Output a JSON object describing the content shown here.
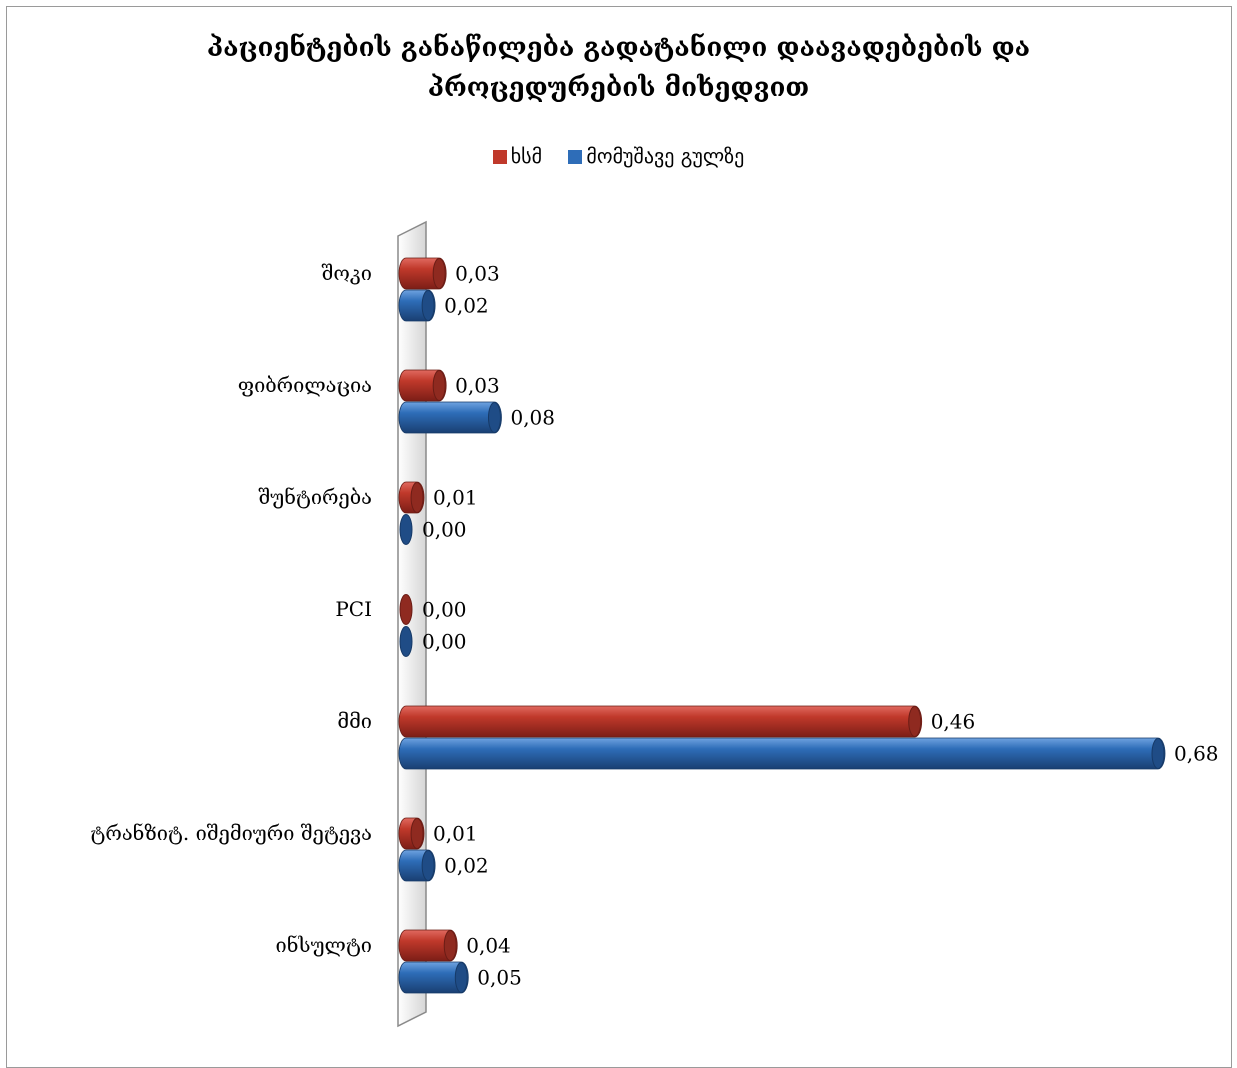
{
  "chart_data": {
    "type": "bar",
    "orientation": "horizontal",
    "title_lines": [
      "პაციენტების განაწილება გადატანილი დაავადებების და",
      "პროცედურების  მიხედვით"
    ],
    "categories": [
      "შოკი",
      "ფიბრილაცია",
      "შუნტირება",
      "PCI",
      "მმი",
      "ტრანზიტ. იშემიური შეტევა",
      "ინსულტი"
    ],
    "series": [
      {
        "name": "ხსმ",
        "color": "#c0392b",
        "values": [
          0.03,
          0.03,
          0.01,
          0.0,
          0.46,
          0.01,
          0.04
        ],
        "labels": [
          "0,03",
          "0,03",
          "0,01",
          "0,00",
          "0,46",
          "0,01",
          "0,04"
        ]
      },
      {
        "name": "მომუშავე გულზე",
        "color": "#2e6db8",
        "values": [
          0.02,
          0.08,
          0.0,
          0.0,
          0.68,
          0.02,
          0.05
        ],
        "labels": [
          "0,02",
          "0,08",
          "0,00",
          "0,00",
          "0,68",
          "0,02",
          "0,05"
        ]
      }
    ],
    "xlim": [
      0,
      0.68
    ],
    "legend_position": "top",
    "grid": false,
    "style": "3d-cylinder"
  }
}
